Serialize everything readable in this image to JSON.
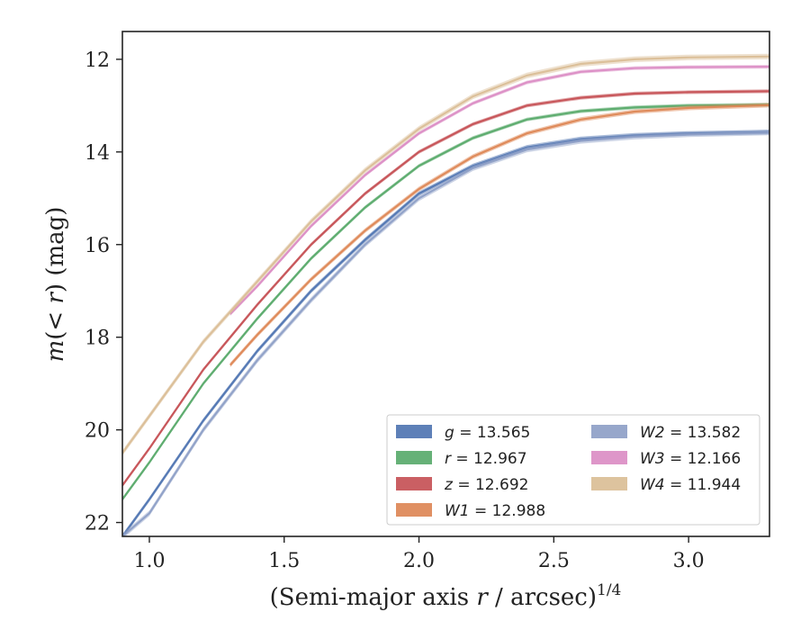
{
  "chart_data": {
    "type": "line",
    "title": "",
    "xlabel": {
      "main": "(Semi-major axis ",
      "var": "r",
      "rest": " / arcsec)",
      "sup": "1/4"
    },
    "ylabel": {
      "pre": "m",
      "mid": "(< ",
      "var": "r",
      "post": ") (mag)"
    },
    "xlim": [
      0.9,
      3.3
    ],
    "ylim": [
      22.3,
      11.4
    ],
    "y_inverted": true,
    "xticks": [
      1.0,
      1.5,
      2.0,
      2.5,
      3.0
    ],
    "xtick_labels": [
      "1.0",
      "1.5",
      "2.0",
      "2.5",
      "3.0"
    ],
    "yticks": [
      12,
      14,
      16,
      18,
      20,
      22
    ],
    "ytick_labels": [
      "12",
      "14",
      "16",
      "18",
      "20",
      "22"
    ],
    "grid": false,
    "legend_placement": "lower-right",
    "series": [
      {
        "key": "g",
        "band": "g",
        "value": "13.565",
        "color": "#4c72b0",
        "x": [
          0.9,
          1.0,
          1.2,
          1.4,
          1.6,
          1.8,
          2.0,
          2.2,
          2.4,
          2.6,
          2.8,
          3.0,
          3.3
        ],
        "y": [
          22.3,
          21.5,
          19.8,
          18.3,
          17.0,
          15.9,
          14.9,
          14.3,
          13.9,
          13.72,
          13.64,
          13.6,
          13.57
        ],
        "band_width": 0.1
      },
      {
        "key": "r",
        "band": "r",
        "value": "12.967",
        "color": "#55a868",
        "x": [
          0.9,
          1.0,
          1.2,
          1.4,
          1.6,
          1.8,
          2.0,
          2.2,
          2.4,
          2.6,
          2.8,
          3.0,
          3.3
        ],
        "y": [
          21.5,
          20.7,
          19.0,
          17.6,
          16.3,
          15.2,
          14.3,
          13.7,
          13.3,
          13.12,
          13.04,
          13.0,
          12.98
        ],
        "band_width": 0.08
      },
      {
        "key": "z",
        "band": "z",
        "value": "12.692",
        "color": "#c44e52",
        "x": [
          0.9,
          1.0,
          1.2,
          1.4,
          1.6,
          1.8,
          2.0,
          2.2,
          2.4,
          2.6,
          2.8,
          3.0,
          3.3
        ],
        "y": [
          21.2,
          20.4,
          18.7,
          17.3,
          16.0,
          14.9,
          14.0,
          13.4,
          13.0,
          12.83,
          12.74,
          12.71,
          12.69
        ],
        "band_width": 0.08
      },
      {
        "key": "W1",
        "band": "W1",
        "value": "12.988",
        "color": "#dd8452",
        "x": [
          1.3,
          1.4,
          1.6,
          1.8,
          2.0,
          2.2,
          2.4,
          2.6,
          2.8,
          3.0,
          3.3
        ],
        "y": [
          18.6,
          17.95,
          16.75,
          15.7,
          14.8,
          14.1,
          13.6,
          13.3,
          13.13,
          13.05,
          12.99
        ],
        "band_width": 0.1
      },
      {
        "key": "W2",
        "band": "W2",
        "value": "13.582",
        "color": "#8c9dc5",
        "x": [
          0.9,
          1.0,
          1.2,
          1.4,
          1.6,
          1.8,
          2.0,
          2.2,
          2.4,
          2.6,
          2.8,
          3.0,
          3.3
        ],
        "y": [
          22.3,
          21.8,
          20.0,
          18.5,
          17.2,
          16.0,
          15.0,
          14.35,
          13.95,
          13.76,
          13.67,
          13.62,
          13.58
        ],
        "band_width": 0.12
      },
      {
        "key": "W3",
        "band": "W3",
        "value": "12.166",
        "color": "#da8bc3",
        "x": [
          1.3,
          1.4,
          1.6,
          1.8,
          2.0,
          2.2,
          2.4,
          2.6,
          2.8,
          3.0,
          3.3
        ],
        "y": [
          17.5,
          16.9,
          15.6,
          14.5,
          13.6,
          12.95,
          12.5,
          12.27,
          12.19,
          12.17,
          12.16
        ],
        "band_width": 0.08
      },
      {
        "key": "W4",
        "band": "W4",
        "value": "11.944",
        "color": "#d9bc94",
        "x": [
          0.9,
          1.0,
          1.2,
          1.4,
          1.6,
          1.8,
          2.0,
          2.2,
          2.4,
          2.6,
          2.8,
          3.0,
          3.3
        ],
        "y": [
          20.5,
          19.7,
          18.1,
          16.8,
          15.5,
          14.4,
          13.5,
          12.8,
          12.35,
          12.1,
          12.0,
          11.96,
          11.94
        ],
        "band_width": 0.12
      }
    ],
    "legend_order": [
      [
        "g",
        "r",
        "z",
        "W1"
      ],
      [
        "W2",
        "W3",
        "W4"
      ]
    ]
  }
}
